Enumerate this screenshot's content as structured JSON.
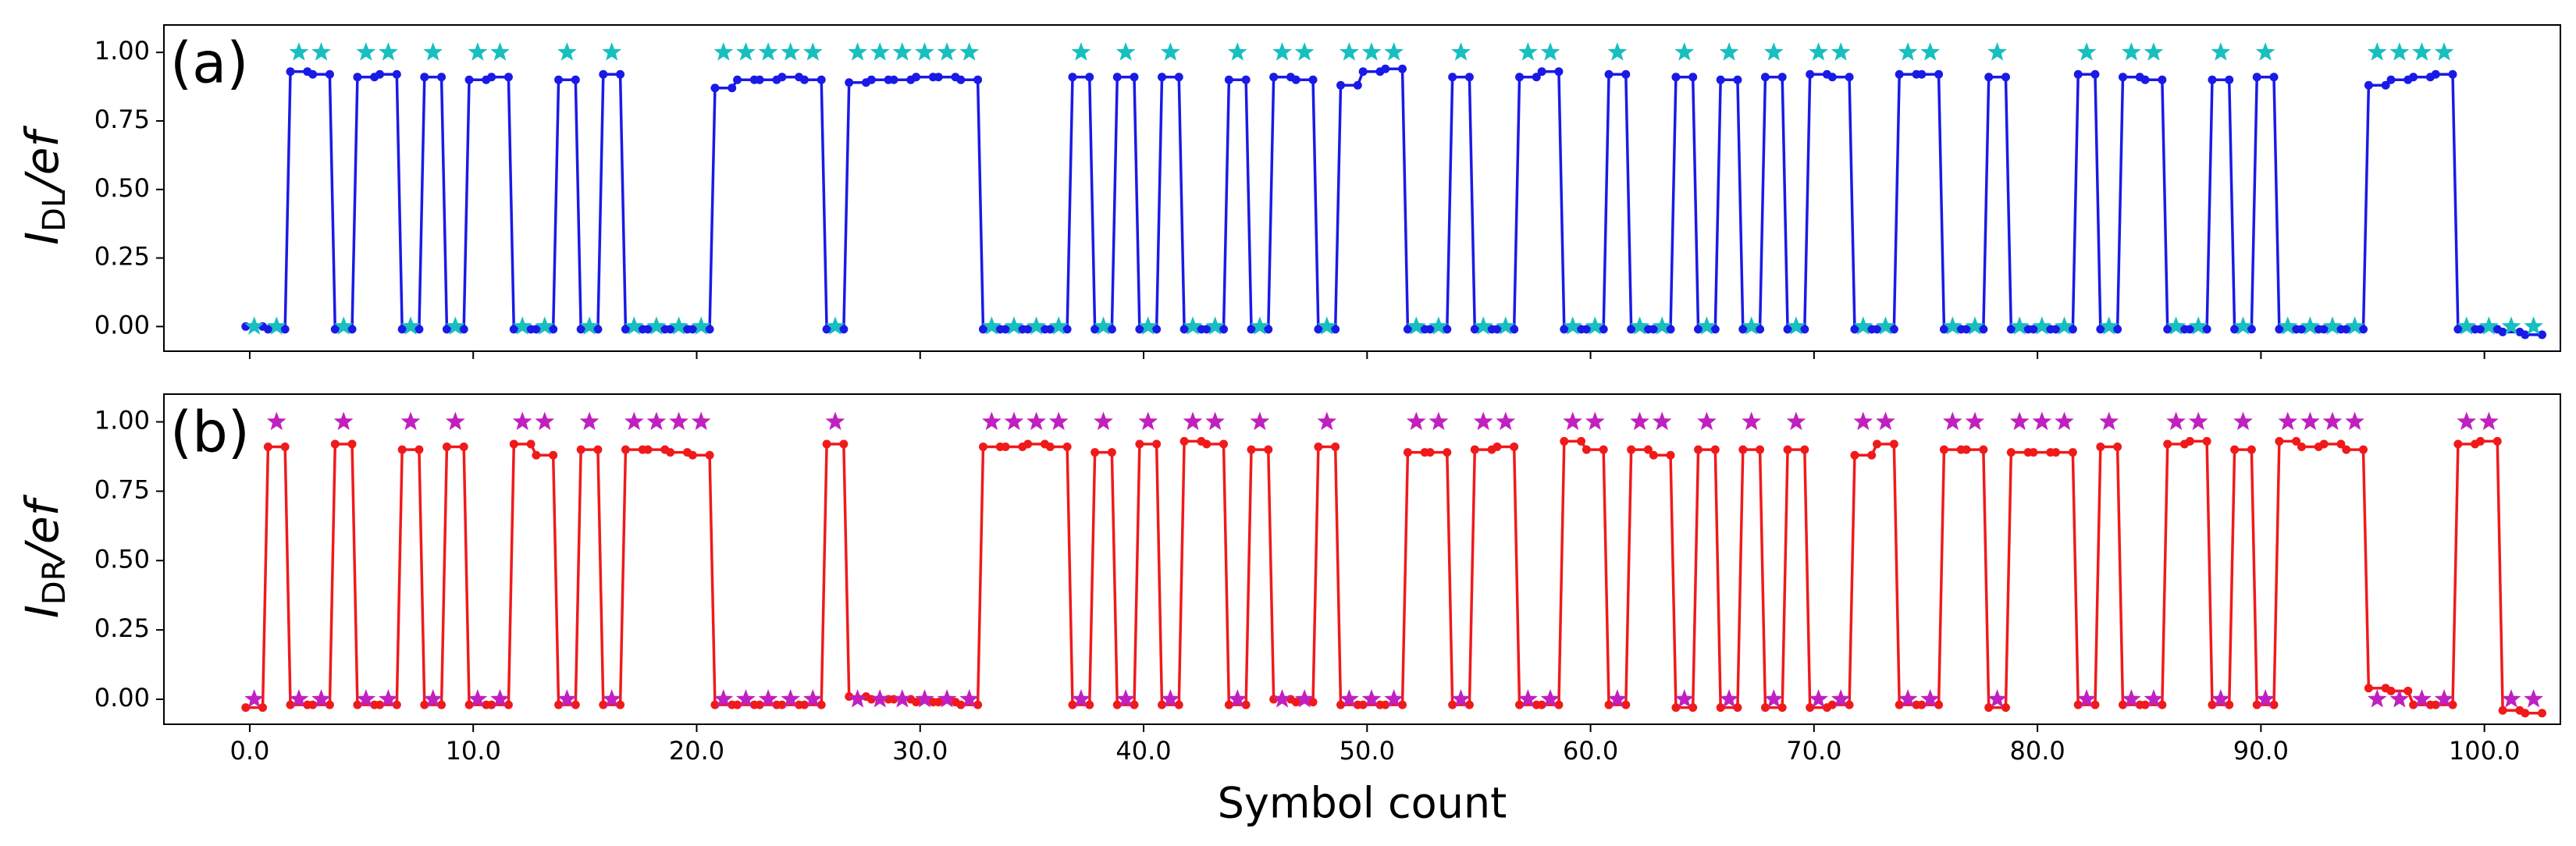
{
  "chart_data": [
    {
      "type": "line",
      "panel_label": "(a)",
      "ylabel_main": "I",
      "ylabel_sub": "DL",
      "ylabel_rest": "/ef",
      "xlim": [
        -3.84,
        103.4
      ],
      "ylim": [
        -0.09,
        1.1
      ],
      "yticks": [
        {
          "value": 0,
          "label": "0.00"
        },
        {
          "value": 0.25,
          "label": "0.25"
        },
        {
          "value": 0.5,
          "label": "0.50"
        },
        {
          "value": 0.75,
          "label": "0.75"
        },
        {
          "value": 1,
          "label": "1.00"
        }
      ],
      "x": [
        0.2,
        1.2,
        2.2,
        3.2,
        4.2,
        5.2,
        6.2,
        7.2,
        8.2,
        9.2,
        10.2,
        11.2,
        12.2,
        13.2,
        14.2,
        15.2,
        16.2,
        17.2,
        18.2,
        19.2,
        20.2,
        21.2,
        22.2,
        23.2,
        24.2,
        25.2,
        26.2,
        27.2,
        28.2,
        29.2,
        30.2,
        31.2,
        32.2,
        33.2,
        34.2,
        35.2,
        36.2,
        37.2,
        38.2,
        39.2,
        40.2,
        41.2,
        42.2,
        43.2,
        44.2,
        45.2,
        46.2,
        47.2,
        48.2,
        49.2,
        50.2,
        51.2,
        52.2,
        53.2,
        54.2,
        55.2,
        56.2,
        57.2,
        58.2,
        59.2,
        60.2,
        61.2,
        62.2,
        63.2,
        64.2,
        65.2,
        66.2,
        67.2,
        68.2,
        69.2,
        70.2,
        71.2,
        72.2,
        73.2,
        74.2,
        75.2,
        76.2,
        77.2,
        78.2,
        79.2,
        80.2,
        81.2,
        82.2,
        83.2,
        84.2,
        85.2,
        86.2,
        87.2,
        88.2,
        89.2,
        90.2,
        91.2,
        92.2,
        93.2,
        94.2,
        95.2,
        96.2,
        97.2,
        98.2,
        99.2,
        100.2,
        101.2,
        102.2
      ],
      "series": [
        {
          "color": "#1a1ae6",
          "marker": "dot",
          "values": [
            0,
            -0.01,
            0.93,
            0.92,
            -0.01,
            0.91,
            0.92,
            -0.01,
            0.91,
            -0.01,
            0.9,
            0.91,
            -0.01,
            -0.01,
            0.9,
            -0.01,
            0.92,
            -0.01,
            -0.01,
            -0.01,
            -0.01,
            0.87,
            0.9,
            0.9,
            0.91,
            0.9,
            -0.01,
            0.89,
            0.9,
            0.9,
            0.91,
            0.91,
            0.9,
            -0.01,
            -0.01,
            -0.01,
            -0.01,
            0.91,
            -0.01,
            0.91,
            -0.01,
            0.91,
            -0.01,
            -0.01,
            0.9,
            -0.01,
            0.91,
            0.9,
            -0.01,
            0.88,
            0.93,
            0.94,
            -0.01,
            -0.01,
            0.91,
            -0.01,
            -0.01,
            0.91,
            0.93,
            -0.01,
            -0.01,
            0.92,
            -0.01,
            -0.01,
            0.91,
            -0.01,
            0.9,
            -0.01,
            0.91,
            -0.01,
            0.92,
            0.91,
            -0.01,
            -0.01,
            0.92,
            0.92,
            -0.01,
            -0.01,
            0.91,
            -0.01,
            -0.01,
            -0.01,
            0.92,
            -0.01,
            0.91,
            0.9,
            -0.01,
            -0.01,
            0.9,
            -0.01,
            0.91,
            -0.01,
            -0.01,
            -0.01,
            -0.01,
            0.88,
            0.9,
            0.91,
            0.92,
            -0.01,
            -0.01,
            -0.02,
            -0.03
          ]
        },
        {
          "color": "#17bfbf",
          "marker": "star",
          "values": [
            0,
            0,
            1,
            1,
            0,
            1,
            1,
            0,
            1,
            0,
            1,
            1,
            0,
            0,
            1,
            0,
            1,
            0,
            0,
            0,
            0,
            1,
            1,
            1,
            1,
            1,
            0,
            1,
            1,
            1,
            1,
            1,
            1,
            0,
            0,
            0,
            0,
            1,
            0,
            1,
            0,
            1,
            0,
            0,
            1,
            0,
            1,
            1,
            0,
            1,
            1,
            1,
            0,
            0,
            1,
            0,
            0,
            1,
            1,
            0,
            0,
            1,
            0,
            0,
            1,
            0,
            1,
            0,
            1,
            0,
            1,
            1,
            0,
            0,
            1,
            1,
            0,
            0,
            1,
            0,
            0,
            0,
            1,
            0,
            1,
            1,
            0,
            0,
            1,
            0,
            1,
            0,
            0,
            0,
            0,
            1,
            1,
            1,
            1,
            0,
            0,
            0,
            0
          ]
        }
      ]
    },
    {
      "type": "line",
      "panel_label": "(b)",
      "ylabel_main": "I",
      "ylabel_sub": "DR",
      "ylabel_rest": "/ef",
      "xlabel": "Symbol count",
      "xlim": [
        -3.84,
        103.4
      ],
      "ylim": [
        -0.09,
        1.1
      ],
      "xticks": [
        {
          "value": 0,
          "label": "0.0"
        },
        {
          "value": 10,
          "label": "10.0"
        },
        {
          "value": 20,
          "label": "20.0"
        },
        {
          "value": 30,
          "label": "30.0"
        },
        {
          "value": 40,
          "label": "40.0"
        },
        {
          "value": 50,
          "label": "50.0"
        },
        {
          "value": 60,
          "label": "60.0"
        },
        {
          "value": 70,
          "label": "70.0"
        },
        {
          "value": 80,
          "label": "80.0"
        },
        {
          "value": 90,
          "label": "90.0"
        },
        {
          "value": 100,
          "label": "100.0"
        }
      ],
      "yticks": [
        {
          "value": 0,
          "label": "0.00"
        },
        {
          "value": 0.25,
          "label": "0.25"
        },
        {
          "value": 0.5,
          "label": "0.50"
        },
        {
          "value": 0.75,
          "label": "0.75"
        },
        {
          "value": 1,
          "label": "1.00"
        }
      ],
      "x": [
        0.2,
        1.2,
        2.2,
        3.2,
        4.2,
        5.2,
        6.2,
        7.2,
        8.2,
        9.2,
        10.2,
        11.2,
        12.2,
        13.2,
        14.2,
        15.2,
        16.2,
        17.2,
        18.2,
        19.2,
        20.2,
        21.2,
        22.2,
        23.2,
        24.2,
        25.2,
        26.2,
        27.2,
        28.2,
        29.2,
        30.2,
        31.2,
        32.2,
        33.2,
        34.2,
        35.2,
        36.2,
        37.2,
        38.2,
        39.2,
        40.2,
        41.2,
        42.2,
        43.2,
        44.2,
        45.2,
        46.2,
        47.2,
        48.2,
        49.2,
        50.2,
        51.2,
        52.2,
        53.2,
        54.2,
        55.2,
        56.2,
        57.2,
        58.2,
        59.2,
        60.2,
        61.2,
        62.2,
        63.2,
        64.2,
        65.2,
        66.2,
        67.2,
        68.2,
        69.2,
        70.2,
        71.2,
        72.2,
        73.2,
        74.2,
        75.2,
        76.2,
        77.2,
        78.2,
        79.2,
        80.2,
        81.2,
        82.2,
        83.2,
        84.2,
        85.2,
        86.2,
        87.2,
        88.2,
        89.2,
        90.2,
        91.2,
        92.2,
        93.2,
        94.2,
        95.2,
        96.2,
        97.2,
        98.2,
        99.2,
        100.2,
        101.2,
        102.2
      ],
      "series": [
        {
          "color": "#f01a1a",
          "marker": "dot",
          "values": [
            -0.03,
            0.91,
            -0.02,
            -0.02,
            0.92,
            -0.02,
            -0.02,
            0.9,
            -0.02,
            0.91,
            -0.02,
            -0.02,
            0.92,
            0.88,
            -0.02,
            0.9,
            -0.02,
            0.9,
            0.9,
            0.89,
            0.88,
            -0.02,
            -0.02,
            -0.02,
            -0.02,
            -0.02,
            0.92,
            0.01,
            0,
            0,
            -0.01,
            -0.01,
            -0.02,
            0.91,
            0.91,
            0.92,
            0.91,
            -0.02,
            0.89,
            -0.02,
            0.92,
            -0.02,
            0.93,
            0.92,
            -0.02,
            0.9,
            0,
            -0.01,
            0.91,
            -0.02,
            -0.02,
            -0.02,
            0.89,
            0.89,
            -0.02,
            0.9,
            0.91,
            -0.02,
            -0.02,
            0.93,
            0.9,
            -0.02,
            0.9,
            0.88,
            -0.03,
            0.9,
            -0.03,
            0.9,
            -0.03,
            0.9,
            -0.03,
            -0.02,
            0.88,
            0.92,
            -0.02,
            -0.02,
            0.9,
            0.9,
            -0.03,
            0.89,
            0.89,
            0.89,
            -0.02,
            0.91,
            -0.02,
            -0.02,
            0.92,
            0.93,
            -0.02,
            0.9,
            -0.02,
            0.93,
            0.91,
            0.92,
            0.9,
            0.04,
            0.03,
            -0.02,
            -0.02,
            0.92,
            0.93,
            -0.04,
            -0.05
          ]
        },
        {
          "color": "#c020c0",
          "marker": "star",
          "values": [
            0,
            1,
            0,
            0,
            1,
            0,
            0,
            1,
            0,
            1,
            0,
            0,
            1,
            1,
            0,
            1,
            0,
            1,
            1,
            1,
            1,
            0,
            0,
            0,
            0,
            0,
            1,
            0,
            0,
            0,
            0,
            0,
            0,
            1,
            1,
            1,
            1,
            0,
            1,
            0,
            1,
            0,
            1,
            1,
            0,
            1,
            0,
            0,
            1,
            0,
            0,
            0,
            1,
            1,
            0,
            1,
            1,
            0,
            0,
            1,
            1,
            0,
            1,
            1,
            0,
            1,
            0,
            1,
            0,
            1,
            0,
            0,
            1,
            1,
            0,
            0,
            1,
            1,
            0,
            1,
            1,
            1,
            0,
            1,
            0,
            0,
            1,
            1,
            0,
            1,
            0,
            1,
            1,
            1,
            1,
            0,
            0,
            0,
            0,
            1,
            1,
            0,
            0
          ]
        }
      ]
    }
  ]
}
